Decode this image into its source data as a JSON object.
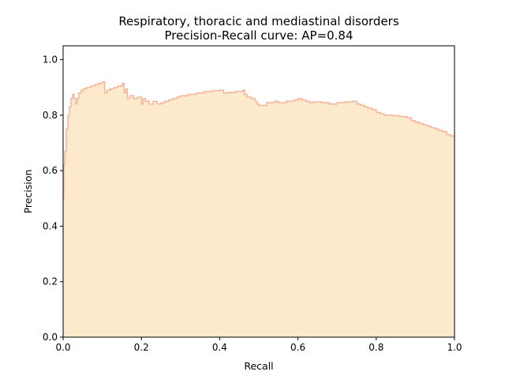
{
  "chart_data": {
    "type": "area",
    "title": "Respiratory, thoracic and mediastinal disorders",
    "subtitle": "Precision-Recall curve: AP=0.84",
    "xlabel": "Recall",
    "ylabel": "Precision",
    "xlim": [
      0.0,
      1.0
    ],
    "ylim": [
      0.0,
      1.05
    ],
    "x_ticks": [
      "0.0",
      "0.2",
      "0.4",
      "0.6",
      "0.8",
      "1.0"
    ],
    "y_ticks": [
      "0.0",
      "0.2",
      "0.4",
      "0.6",
      "0.8",
      "1.0"
    ],
    "grid": false,
    "step": "post",
    "fill_color": "#fde9cc",
    "line_color": "#f7b49a",
    "series": [
      {
        "recall": [
          0.0,
          0.002,
          0.004,
          0.008,
          0.012,
          0.016,
          0.02,
          0.024,
          0.028,
          0.032,
          0.036,
          0.04,
          0.046,
          0.052,
          0.06,
          0.07,
          0.08,
          0.09,
          0.1,
          0.106,
          0.112,
          0.12,
          0.13,
          0.14,
          0.15,
          0.152,
          0.156,
          0.16,
          0.164,
          0.17,
          0.18,
          0.19,
          0.2,
          0.204,
          0.21,
          0.22,
          0.23,
          0.24,
          0.25,
          0.26,
          0.27,
          0.28,
          0.29,
          0.3,
          0.32,
          0.34,
          0.36,
          0.38,
          0.4,
          0.41,
          0.42,
          0.44,
          0.46,
          0.464,
          0.47,
          0.48,
          0.49,
          0.496,
          0.5,
          0.52,
          0.54,
          0.55,
          0.57,
          0.59,
          0.6,
          0.61,
          0.62,
          0.63,
          0.64,
          0.66,
          0.68,
          0.7,
          0.72,
          0.74,
          0.75,
          0.76,
          0.77,
          0.78,
          0.79,
          0.8,
          0.81,
          0.82,
          0.84,
          0.86,
          0.88,
          0.89,
          0.9,
          0.91,
          0.92,
          0.93,
          0.94,
          0.95,
          0.96,
          0.97,
          0.98,
          0.99,
          1.0
        ],
        "precision": [
          0.5,
          0.62,
          0.67,
          0.75,
          0.8,
          0.83,
          0.86,
          0.875,
          0.86,
          0.84,
          0.86,
          0.88,
          0.89,
          0.895,
          0.9,
          0.905,
          0.91,
          0.915,
          0.92,
          0.88,
          0.89,
          0.895,
          0.9,
          0.905,
          0.91,
          0.915,
          0.88,
          0.895,
          0.86,
          0.87,
          0.86,
          0.865,
          0.84,
          0.86,
          0.85,
          0.84,
          0.85,
          0.84,
          0.845,
          0.85,
          0.855,
          0.86,
          0.865,
          0.87,
          0.875,
          0.88,
          0.885,
          0.888,
          0.89,
          0.88,
          0.882,
          0.886,
          0.89,
          0.875,
          0.865,
          0.86,
          0.85,
          0.84,
          0.835,
          0.845,
          0.85,
          0.845,
          0.85,
          0.855,
          0.86,
          0.855,
          0.85,
          0.845,
          0.848,
          0.845,
          0.84,
          0.845,
          0.848,
          0.85,
          0.84,
          0.835,
          0.83,
          0.825,
          0.82,
          0.81,
          0.805,
          0.8,
          0.798,
          0.795,
          0.79,
          0.78,
          0.775,
          0.77,
          0.765,
          0.76,
          0.755,
          0.75,
          0.745,
          0.74,
          0.73,
          0.725,
          0.72
        ]
      }
    ]
  }
}
